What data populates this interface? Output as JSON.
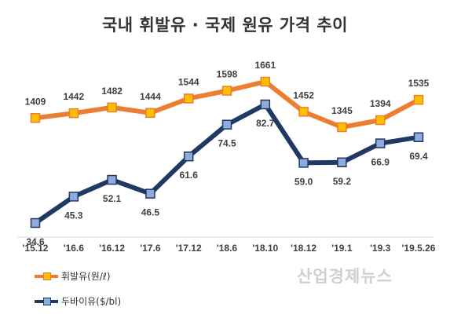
{
  "chart_data": {
    "type": "line",
    "title": "국내 휘발유 · 국제 원유 가격 추이",
    "categories": [
      "'15.12",
      "'16.6",
      "'16.12",
      "'17.6",
      "'17.12",
      "'18.6",
      "'18.10",
      "'18.12",
      "'19.1",
      "'19.3",
      "'19.5.26"
    ],
    "series": [
      {
        "name": "휘발유(원/ℓ)",
        "color": "#ED7D31",
        "marker_color": "#FFC000",
        "values": [
          1409,
          1442,
          1482,
          1444,
          1544,
          1598,
          1661,
          1452,
          1345,
          1394,
          1535
        ]
      },
      {
        "name": "두바이유($/bl)",
        "color": "#203864",
        "marker_color": "#8FAADC",
        "values": [
          34.6,
          45.3,
          52.1,
          46.5,
          61.6,
          74.5,
          82.7,
          59.0,
          59.2,
          66.9,
          69.4
        ]
      }
    ],
    "grid": false,
    "legend": "bottom-left"
  },
  "watermark": "산업경제뉴스"
}
